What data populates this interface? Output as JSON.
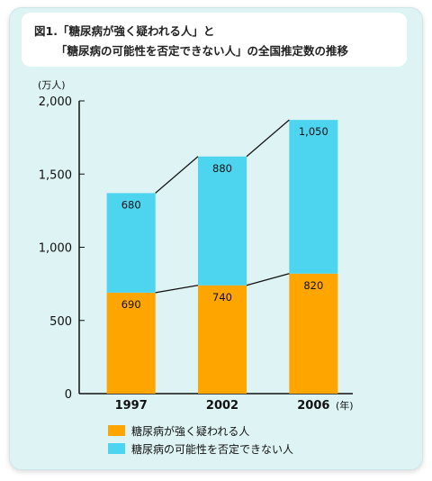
{
  "title_line1": "図1.「糖尿病が強く疑われる人」と",
  "title_line2": "「糖尿病の可能性を否定できない人」の全国推定数の推移",
  "chart_data": {
    "type": "bar",
    "stacked": true,
    "categories": [
      "1997",
      "2002",
      "2006"
    ],
    "series": [
      {
        "name": "糖尿病が強く疑われる人",
        "values": [
          690,
          740,
          820
        ],
        "color": "#ffa500"
      },
      {
        "name": "糖尿病の可能性を否定できない人",
        "values": [
          680,
          880,
          1050
        ],
        "color": "#4dd4ef"
      }
    ],
    "data_labels": [
      [
        "690",
        "740",
        "820"
      ],
      [
        "680",
        "880",
        "1,050"
      ]
    ],
    "ylabel": "(万人)",
    "xlabel": "(年)",
    "ylim": [
      0,
      2000
    ],
    "yticks": [
      0,
      500,
      1000,
      1500,
      2000
    ],
    "ytick_labels": [
      "0",
      "500",
      "1,000",
      "1,500",
      "2,000"
    ],
    "legend": "bottom-left",
    "connector_lines": true,
    "grid": false
  }
}
